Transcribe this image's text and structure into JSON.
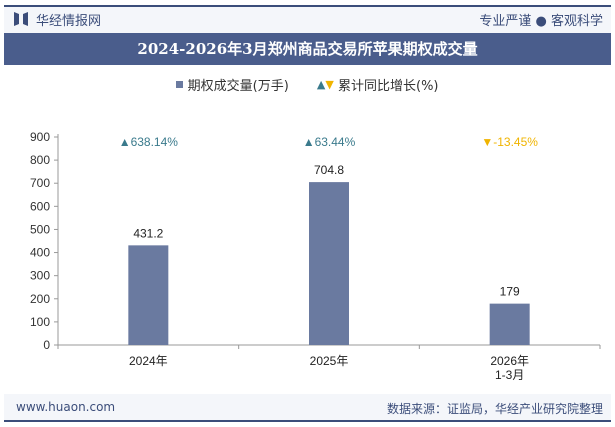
{
  "header": {
    "brand": "华经情报网",
    "slogan": "专业严谨 ● 客观科学"
  },
  "title": "2024-2026年3月郑州商品交易所苹果期权成交量",
  "footer": {
    "url": "www.huaon.com",
    "source": "数据来源：证监局，华经产业研究院整理"
  },
  "watermark": "华经产业研究院",
  "chart_data": {
    "type": "bar",
    "title": "2024-2026年3月郑州商品交易所苹果期权成交量",
    "categories": [
      "2024年",
      "2025年",
      "2026年\n1-3月"
    ],
    "series": [
      {
        "name": "期权成交量(万手)",
        "type": "bar",
        "values": [
          431.2,
          704.8,
          179
        ],
        "color": "#6a7aa0"
      },
      {
        "name": "累计同比增长(%)",
        "type": "marker-label",
        "values": [
          638.14,
          63.44,
          -13.45
        ],
        "labels": [
          "638.14%",
          "63.44%",
          "-13.45%"
        ],
        "colors": {
          "up": "#3a7a8c",
          "down": "#f0b400"
        }
      }
    ],
    "ylim": [
      0,
      900
    ],
    "yticks": [
      0,
      100,
      200,
      300,
      400,
      500,
      600,
      700,
      800,
      900
    ],
    "grid": false,
    "legend": "top-center"
  }
}
